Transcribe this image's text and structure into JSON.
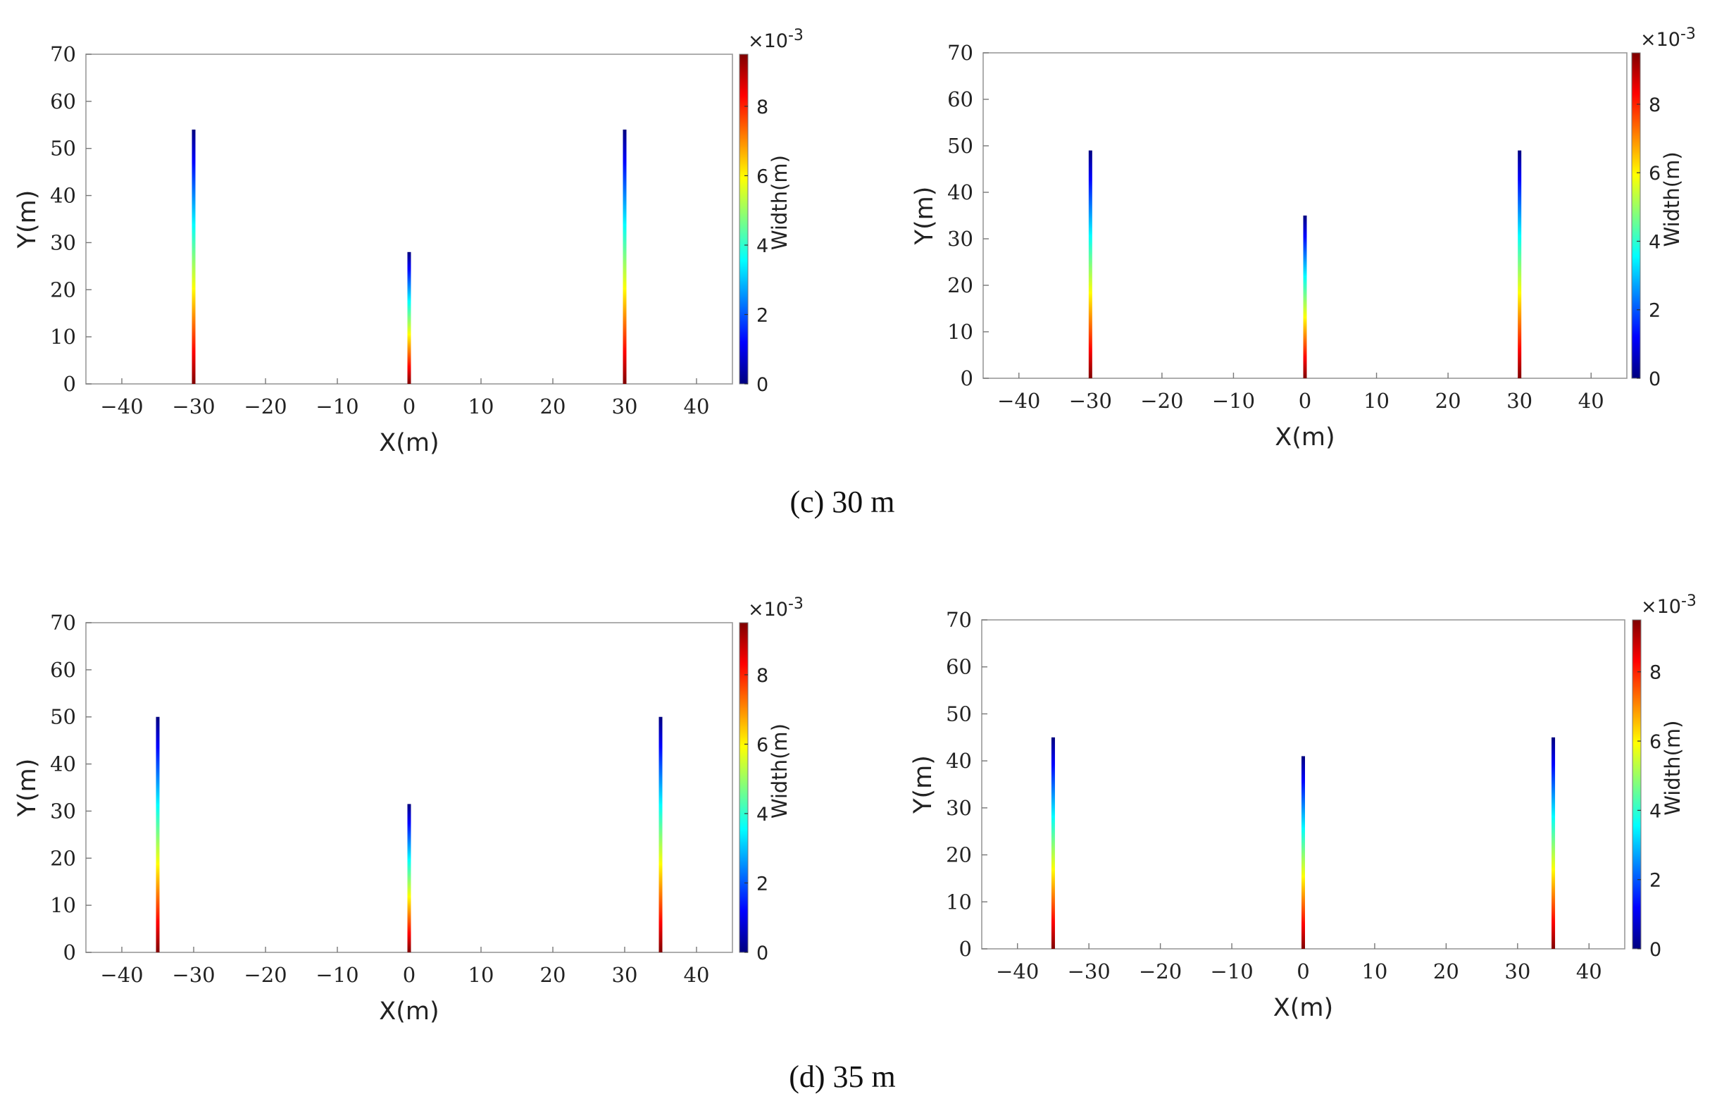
{
  "chart_data": [
    {
      "type": "line",
      "xlabel": "X(m)",
      "ylabel": "Y(m)",
      "xlim": [
        -45,
        45
      ],
      "ylim": [
        0,
        70
      ],
      "xticks": [
        "−40",
        "−30",
        "−20",
        "−10",
        "0",
        "10",
        "20",
        "30",
        "40"
      ],
      "xtick_values": [
        -40,
        -30,
        -20,
        -10,
        0,
        10,
        20,
        30,
        40
      ],
      "yticks": [
        "0",
        "10",
        "20",
        "30",
        "40",
        "50",
        "60",
        "70"
      ],
      "ytick_values": [
        0,
        10,
        20,
        30,
        40,
        50,
        60,
        70
      ],
      "colorbar": {
        "label": "Width(m)",
        "exponent": "×10",
        "exponent_power": "-3",
        "ticks": [
          "0",
          "2",
          "4",
          "6",
          "8"
        ],
        "tick_values": [
          0,
          2,
          4,
          6,
          8
        ],
        "range": [
          0,
          9.5
        ]
      },
      "fractures": [
        {
          "x": -30,
          "length": 54
        },
        {
          "x": 0,
          "length": 28
        },
        {
          "x": 30,
          "length": 54
        }
      ]
    },
    {
      "type": "line",
      "xlabel": "X(m)",
      "ylabel": "Y(m)",
      "xlim": [
        -45,
        45
      ],
      "ylim": [
        0,
        70
      ],
      "xticks": [
        "−40",
        "−30",
        "−20",
        "−10",
        "0",
        "10",
        "20",
        "30",
        "40"
      ],
      "xtick_values": [
        -40,
        -30,
        -20,
        -10,
        0,
        10,
        20,
        30,
        40
      ],
      "yticks": [
        "0",
        "10",
        "20",
        "30",
        "40",
        "50",
        "60",
        "70"
      ],
      "ytick_values": [
        0,
        10,
        20,
        30,
        40,
        50,
        60,
        70
      ],
      "colorbar": {
        "label": "Width(m)",
        "exponent": "×10",
        "exponent_power": "-3",
        "ticks": [
          "0",
          "2",
          "4",
          "6",
          "8"
        ],
        "tick_values": [
          0,
          2,
          4,
          6,
          8
        ],
        "range": [
          0,
          9.5
        ]
      },
      "fractures": [
        {
          "x": -30,
          "length": 49
        },
        {
          "x": 0,
          "length": 35
        },
        {
          "x": 30,
          "length": 49
        }
      ]
    },
    {
      "type": "line",
      "xlabel": "X(m)",
      "ylabel": "Y(m)",
      "xlim": [
        -45,
        45
      ],
      "ylim": [
        0,
        70
      ],
      "xticks": [
        "−40",
        "−30",
        "−20",
        "−10",
        "0",
        "10",
        "20",
        "30",
        "40"
      ],
      "xtick_values": [
        -40,
        -30,
        -20,
        -10,
        0,
        10,
        20,
        30,
        40
      ],
      "yticks": [
        "0",
        "10",
        "20",
        "30",
        "40",
        "50",
        "60",
        "70"
      ],
      "ytick_values": [
        0,
        10,
        20,
        30,
        40,
        50,
        60,
        70
      ],
      "colorbar": {
        "label": "Width(m)",
        "exponent": "×10",
        "exponent_power": "-3",
        "ticks": [
          "0",
          "2",
          "4",
          "6",
          "8"
        ],
        "tick_values": [
          0,
          2,
          4,
          6,
          8
        ],
        "range": [
          0,
          9.5
        ]
      },
      "fractures": [
        {
          "x": -35,
          "length": 50
        },
        {
          "x": 0,
          "length": 31.5
        },
        {
          "x": 35,
          "length": 50
        }
      ]
    },
    {
      "type": "line",
      "xlabel": "X(m)",
      "ylabel": "Y(m)",
      "xlim": [
        -45,
        45
      ],
      "ylim": [
        0,
        70
      ],
      "xticks": [
        "−40",
        "−30",
        "−20",
        "−10",
        "0",
        "10",
        "20",
        "30",
        "40"
      ],
      "xtick_values": [
        -40,
        -30,
        -20,
        -10,
        0,
        10,
        20,
        30,
        40
      ],
      "yticks": [
        "0",
        "10",
        "20",
        "30",
        "40",
        "50",
        "60",
        "70"
      ],
      "ytick_values": [
        0,
        10,
        20,
        30,
        40,
        50,
        60,
        70
      ],
      "colorbar": {
        "label": "Width(m)",
        "exponent": "×10",
        "exponent_power": "-3",
        "ticks": [
          "0",
          "2",
          "4",
          "6",
          "8"
        ],
        "tick_values": [
          0,
          2,
          4,
          6,
          8
        ],
        "range": [
          0,
          9.5
        ]
      },
      "fractures": [
        {
          "x": -35,
          "length": 45
        },
        {
          "x": 0,
          "length": 41
        },
        {
          "x": 35,
          "length": 45
        }
      ]
    }
  ],
  "captions": [
    "(c) 30 m",
    "(d) 35 m"
  ],
  "colormap": [
    "#00007f",
    "#0000ff",
    "#007fff",
    "#00ffff",
    "#7fff7f",
    "#ffff00",
    "#ff7f00",
    "#ff0000",
    "#7f0000"
  ]
}
